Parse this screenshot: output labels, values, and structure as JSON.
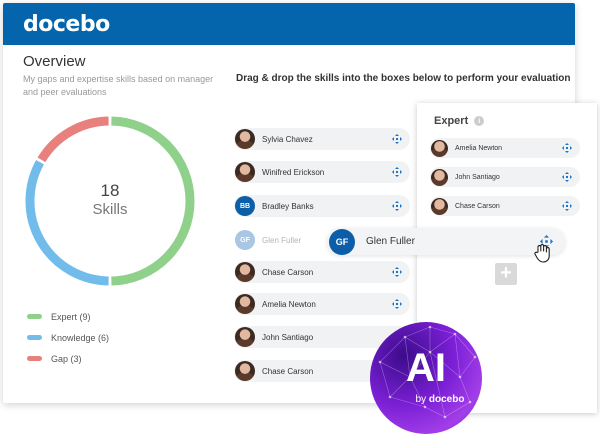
{
  "header": {
    "logo": "docebo",
    "brand_color": "#0465ac"
  },
  "overview": {
    "title": "Overview",
    "subtitle": "My gaps and expertise skills based on manager and peer evaluations",
    "total": "18",
    "total_label": "Skills",
    "legend": [
      {
        "label": "Expert (9)",
        "color": "#8fd18b",
        "value": 9
      },
      {
        "label": "Knowledge (6)",
        "color": "#72bcec",
        "value": 6
      },
      {
        "label": "Gap (3)",
        "color": "#e8807d",
        "value": 3
      }
    ]
  },
  "instruction": "Drag & drop the skills into the boxes below to perform your evaluation",
  "skills": [
    {
      "name": "Sylvia Chavez",
      "avatar": "photo"
    },
    {
      "name": "Winifred Erickson",
      "avatar": "photo"
    },
    {
      "name": "Bradley Banks",
      "avatar": "initials",
      "initials": "BB"
    },
    {
      "name": "Glen Fuller",
      "avatar": "initials",
      "initials": "GF",
      "faded": true
    },
    {
      "name": "Chase Carson",
      "avatar": "photo"
    },
    {
      "name": "Amelia Newton",
      "avatar": "photo"
    },
    {
      "name": "John Santiago",
      "avatar": "photo"
    },
    {
      "name": "Chase Carson",
      "avatar": "photo"
    }
  ],
  "expert_panel": {
    "title": "Expert",
    "items": [
      {
        "name": "Amelia Newton"
      },
      {
        "name": "John Santiago"
      },
      {
        "name": "Chase Carson"
      }
    ],
    "add_label": "+"
  },
  "dragging": {
    "name": "Glen Fuller",
    "initials": "GF"
  },
  "ai_badge": {
    "text": "AI",
    "by": "by",
    "brand": "docebo"
  },
  "icons": {
    "move": "move-arrows-icon",
    "info": "info-icon",
    "cursor": "grab-hand-icon"
  },
  "accent_color": "#0d5ea8"
}
